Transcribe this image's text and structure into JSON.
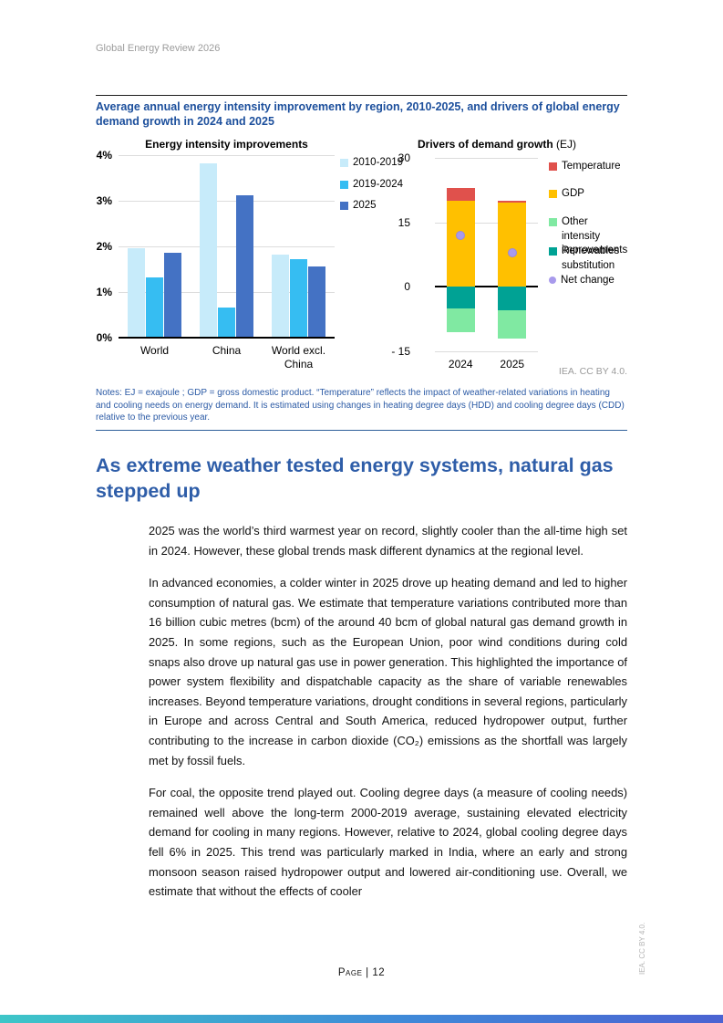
{
  "header": {
    "title": "Global Energy Review 2026"
  },
  "figure": {
    "title": "Average annual energy intensity improvement by region, 2010-2025, and drivers of global energy demand growth in 2024 and 2025",
    "attribution": "IEA. CC BY 4.0.",
    "notes": "Notes: EJ = exajoule ; GDP = gross domestic product. “Temperature” reflects the impact of weather-related variations in heating and cooling needs on energy demand. It is estimated using changes in heating degree days (HDD) and cooling degree days (CDD) relative to the previous year."
  },
  "chart_data": [
    {
      "type": "bar",
      "title": "Energy intensity improvements",
      "categories": [
        "World",
        "China",
        "World excl. China"
      ],
      "series": [
        {
          "name": "2010-2019",
          "color": "#C7EBFA",
          "values": [
            1.95,
            3.8,
            1.8
          ]
        },
        {
          "name": "2019-2024",
          "color": "#36BDF2",
          "values": [
            1.3,
            0.65,
            1.7
          ]
        },
        {
          "name": "2025",
          "color": "#4472C4",
          "values": [
            1.85,
            3.1,
            1.55
          ]
        }
      ],
      "yticks": [
        0,
        1,
        2,
        3,
        4
      ],
      "ytick_labels": [
        "0%",
        "1%",
        "2%",
        "3%",
        "4%"
      ],
      "ylim": [
        0,
        4
      ],
      "grid": true,
      "legend_position": "right"
    },
    {
      "type": "stacked-bar",
      "title": "Drivers of demand growth",
      "title_suffix": " (EJ)",
      "categories": [
        "2024",
        "2025"
      ],
      "series": [
        {
          "name": "GDP",
          "color": "#FFC000",
          "values": [
            20,
            19.5
          ]
        },
        {
          "name": "Temperature",
          "color": "#E0514C",
          "values": [
            3,
            0.5
          ]
        },
        {
          "name": "Renewables substitution",
          "color": "#00A294",
          "values": [
            -5,
            -5.5
          ]
        },
        {
          "name": "Other intensity improvements",
          "color": "#80E9A2",
          "values": [
            -5.5,
            -6.5
          ]
        }
      ],
      "point_series": {
        "name": "Net change",
        "color": "#A89AEC",
        "values": [
          12,
          8
        ]
      },
      "legend_order": [
        "Temperature",
        "GDP",
        "Other intensity improvements",
        "Renewables substitution",
        "Net change"
      ],
      "yticks": [
        30,
        15,
        0,
        -15
      ],
      "ytick_labels": [
        "30",
        "15",
        "0",
        "- 15"
      ],
      "ylim": [
        -15,
        30
      ],
      "grid": true,
      "legend_position": "right"
    }
  ],
  "section": {
    "heading": "As extreme weather tested energy systems, natural gas stepped up",
    "paragraphs": [
      "2025 was the world’s third warmest year on record, slightly cooler than the all-time high set in 2024. However, these global trends mask different dynamics at the regional level.",
      "In advanced economies, a colder winter in 2025 drove up heating demand and led to higher consumption of natural gas. We estimate that temperature variations contributed more than 16 billion cubic metres (bcm) of the around 40 bcm of global natural gas demand growth in 2025. In some regions, such as the European Union, poor wind conditions during cold snaps also drove up natural gas use in power generation. This highlighted the importance of power system flexibility and dispatchable capacity as the share of variable renewables increases. Beyond temperature variations, drought conditions in several regions, particularly in Europe and across Central and South America, reduced hydropower output, further contributing to the increase in carbon dioxide (CO₂) emissions as the shortfall was largely met by fossil fuels.",
      "For coal, the opposite trend played out. Cooling degree days (a measure of cooling needs) remained well above the long-term 2000-2019 average, sustaining elevated electricity demand for cooling in many regions. However, relative to 2024, global cooling degree days fell 6% in 2025. This trend was particularly marked in India, where an early and strong monsoon season raised hydropower output and lowered air-conditioning use. Overall, we estimate that without the effects of cooler"
    ]
  },
  "footer": {
    "page_label": "Page | 12",
    "side_attribution": "IEA. CC BY 4.0."
  }
}
